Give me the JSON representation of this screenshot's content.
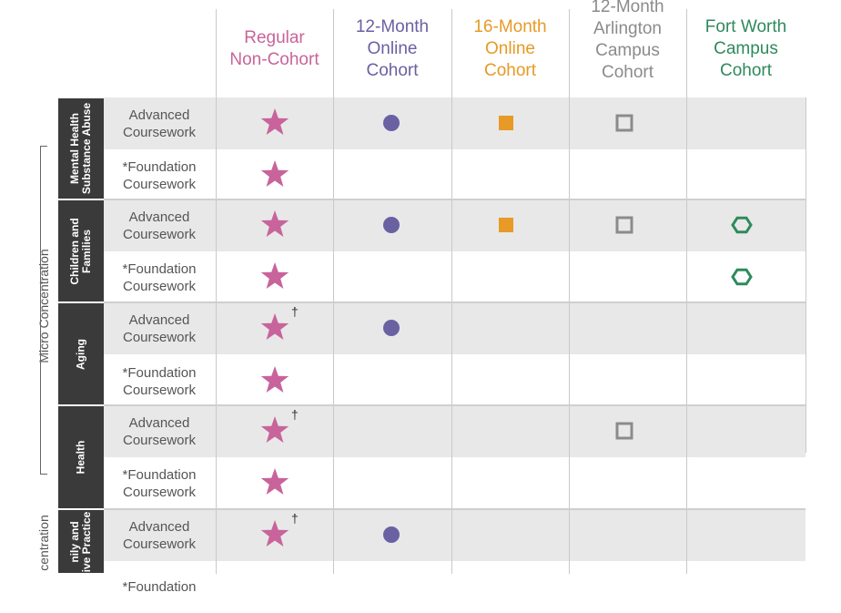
{
  "colors": {
    "regular": "#c8649b",
    "online12": "#6a61a3",
    "online16": "#e79a25",
    "arlington": "#8b8b8b",
    "fortworth": "#2e8a5c"
  },
  "columns": [
    {
      "label": "Regular\nNon-Cohort"
    },
    {
      "label": "12-Month\nOnline\nCohort"
    },
    {
      "label": "16-Month\nOnline\nCohort"
    },
    {
      "label": "12-Month\nArlington\nCampus\nCohort"
    },
    {
      "label": "Fort Worth\nCampus\nCohort"
    }
  ],
  "categories": [
    {
      "label": "Mental Health\nSubstance Abuse"
    },
    {
      "label": "Children and\nFamilies"
    },
    {
      "label": "Aging"
    },
    {
      "label": "Health"
    },
    {
      "label": "nily and\nive Practice"
    }
  ],
  "rows": [
    {
      "label": "Advanced\nCoursework",
      "marks": [
        "star",
        "circle",
        "square",
        "hollow-square",
        ""
      ],
      "dagger": false
    },
    {
      "label": "*Foundation\nCoursework",
      "marks": [
        "star",
        "",
        "",
        "",
        ""
      ],
      "dagger": false
    },
    {
      "label": "Advanced\nCoursework",
      "marks": [
        "star",
        "circle",
        "square",
        "hollow-square",
        "hexagon"
      ],
      "dagger": false
    },
    {
      "label": "*Foundation\nCoursework",
      "marks": [
        "star",
        "",
        "",
        "",
        "hexagon"
      ],
      "dagger": false
    },
    {
      "label": "Advanced\nCoursework",
      "marks": [
        "star",
        "circle",
        "",
        "",
        ""
      ],
      "dagger": true
    },
    {
      "label": "*Foundation\nCoursework",
      "marks": [
        "star",
        "",
        "",
        "",
        ""
      ],
      "dagger": false
    },
    {
      "label": "Advanced\nCoursework",
      "marks": [
        "star",
        "",
        "",
        "hollow-square",
        ""
      ],
      "dagger": true
    },
    {
      "label": "*Foundation\nCoursework",
      "marks": [
        "star",
        "",
        "",
        "",
        ""
      ],
      "dagger": false
    },
    {
      "label": "Advanced\nCoursework",
      "marks": [
        "star",
        "circle",
        "",
        "",
        ""
      ],
      "dagger": true
    },
    {
      "label": "*Foundation",
      "marks": [
        "",
        "",
        "",
        "",
        ""
      ],
      "dagger": false
    }
  ],
  "dagger_symbol": "†",
  "side_labels": {
    "micro": "Micro Concentration",
    "next": "centration"
  }
}
